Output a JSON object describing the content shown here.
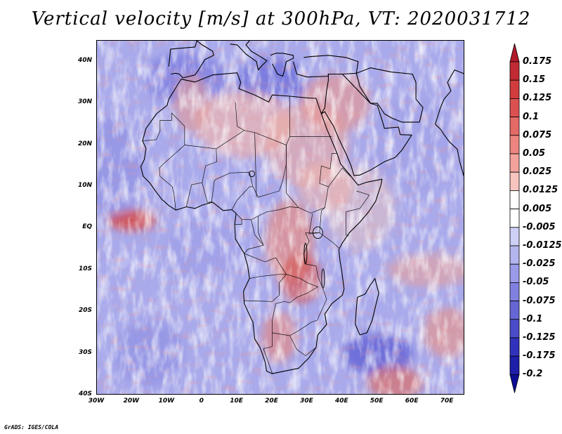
{
  "title": "Vertical velocity [m/s] at 300hPa, VT: 2020031712",
  "footer": "GrADS: IGES/COLA",
  "map": {
    "lon_range": [
      -30,
      75
    ],
    "lat_range": [
      -40,
      45
    ],
    "lat_ticks": [
      {
        "value": 40,
        "label": "40N"
      },
      {
        "value": 30,
        "label": "30N"
      },
      {
        "value": 20,
        "label": "20N"
      },
      {
        "value": 10,
        "label": "10N"
      },
      {
        "value": 0,
        "label": "EQ"
      },
      {
        "value": -10,
        "label": "10S"
      },
      {
        "value": -20,
        "label": "20S"
      },
      {
        "value": -30,
        "label": "30S"
      },
      {
        "value": -40,
        "label": "40S"
      }
    ],
    "lon_ticks": [
      {
        "value": -30,
        "label": "30W"
      },
      {
        "value": -20,
        "label": "20W"
      },
      {
        "value": -10,
        "label": "10W"
      },
      {
        "value": 0,
        "label": "0"
      },
      {
        "value": 10,
        "label": "10E"
      },
      {
        "value": 20,
        "label": "20E"
      },
      {
        "value": 30,
        "label": "30E"
      },
      {
        "value": 40,
        "label": "40E"
      },
      {
        "value": 50,
        "label": "50E"
      },
      {
        "value": 60,
        "label": "60E"
      },
      {
        "value": 70,
        "label": "70E"
      }
    ]
  },
  "colorbar": {
    "labels": [
      "0.175",
      "0.15",
      "0.125",
      "0.1",
      "0.075",
      "0.05",
      "0.025",
      "0.0125",
      "0.005",
      "-0.005",
      "-0.0125",
      "-0.025",
      "-0.05",
      "-0.075",
      "-0.1",
      "-0.125",
      "-0.175",
      "-0.2"
    ],
    "colors": [
      "#b2182b",
      "#c22b33",
      "#d23c3c",
      "#dc5050",
      "#e46a66",
      "#ec857f",
      "#f2a29b",
      "#f8c4be",
      "#ffffff",
      "#ffffff",
      "#cfd0f6",
      "#b4b5ef",
      "#9a9be8",
      "#8081df",
      "#6667d5",
      "#4b4cc9",
      "#3132bb",
      "#1d1eaa",
      "#0e0e94"
    ]
  }
}
